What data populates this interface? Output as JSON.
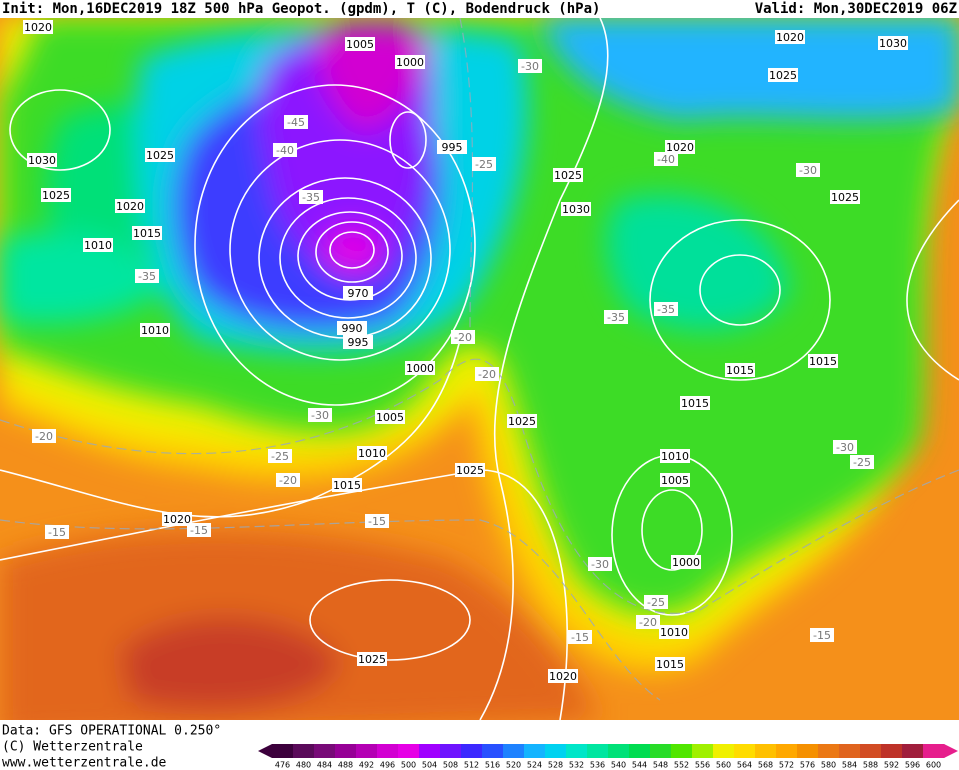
{
  "header": {
    "init": "Init: Mon,16DEC2019 18Z 500 hPa Geopot. (gpdm), T (C), Bodendruck (hPa)",
    "valid": "Valid: Mon,30DEC2019 06Z"
  },
  "footer": [
    "Data: GFS OPERATIONAL 0.250°",
    "(C) Wetterzentrale",
    "www.wetterzentrale.de"
  ],
  "pressure_labels": [
    1020,
    1005,
    1000,
    1020,
    1030,
    1025,
    1030,
    1025,
    995,
    1020,
    1025,
    1025,
    1020,
    1030,
    1015,
    1025,
    1010,
    970,
    990,
    1010,
    995,
    1000,
    1015,
    1015,
    1015,
    1005,
    1025,
    1010,
    1010,
    1025,
    1015,
    1005,
    1020,
    1000,
    1010,
    1025,
    1015,
    1020
  ],
  "temperature_labels": [
    -30,
    -45,
    -40,
    -25,
    -40,
    -30,
    -35,
    -35,
    -35,
    -35,
    -20,
    -20,
    -30,
    -20,
    -25,
    -20,
    -30,
    -25,
    -15,
    -15,
    -15,
    -30,
    -25,
    -20,
    -15,
    -15
  ],
  "colorbar": {
    "ticks": [
      476,
      480,
      484,
      488,
      492,
      496,
      500,
      504,
      508,
      512,
      516,
      520,
      524,
      528,
      532,
      536,
      540,
      544,
      548,
      552,
      556,
      560,
      564,
      568,
      572,
      576,
      580,
      584,
      588,
      592,
      596,
      600
    ],
    "colors": [
      "#3c003c",
      "#5a0a5a",
      "#780a78",
      "#960096",
      "#b400b4",
      "#d200d2",
      "#e600e6",
      "#a000ff",
      "#6e14ff",
      "#3c28ff",
      "#2850ff",
      "#1e82ff",
      "#14b4ff",
      "#00d2f0",
      "#00e6c8",
      "#00e6a0",
      "#00e178",
      "#00dc50",
      "#28dc28",
      "#50e600",
      "#a0f000",
      "#f0f000",
      "#ffdc00",
      "#ffc000",
      "#ffa800",
      "#f59000",
      "#eb7814",
      "#e0641e",
      "#d24c23",
      "#be3228",
      "#a01e3c",
      "#e61e8c"
    ]
  }
}
